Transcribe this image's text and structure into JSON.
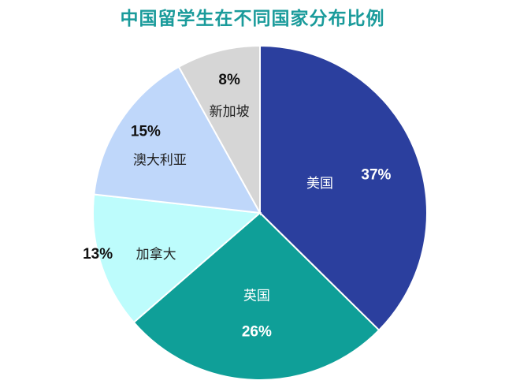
{
  "chart_data": {
    "type": "pie",
    "title": "中国留学生在不同国家分布比例",
    "slices": [
      {
        "name": "美国",
        "value": 37,
        "label": "37%",
        "color": "#2b3f9e",
        "name_color": "#ffffff",
        "pct_color": "#ffffff"
      },
      {
        "name": "英国",
        "value": 26,
        "label": "26%",
        "color": "#0f9f98",
        "name_color": "#ffffff",
        "pct_color": "#ffffff"
      },
      {
        "name": "加拿大",
        "value": 13,
        "label": "13%",
        "color": "#bdfcfc",
        "name_color": "#222222",
        "pct_color": "#111111"
      },
      {
        "name": "澳大利亚",
        "value": 15,
        "label": "15%",
        "color": "#bfd7fa",
        "name_color": "#222222",
        "pct_color": "#111111"
      },
      {
        "name": "新加坡",
        "value": 8,
        "label": "8%",
        "color": "#d6d6d6",
        "name_color": "#222222",
        "pct_color": "#111111"
      }
    ]
  }
}
